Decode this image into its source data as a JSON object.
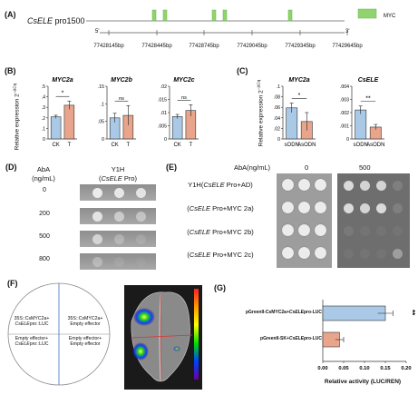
{
  "panels": {
    "A": {
      "label": "(A)",
      "gene": "CsELE",
      "promoter": "pro1500",
      "five_prime": "5'",
      "three_prime": "3'",
      "legend": "MYC",
      "positions": [
        "77428145bp",
        "77428445bp",
        "77428745bp",
        "77429045bp",
        "77429345bp",
        "77429645bp"
      ]
    },
    "B": {
      "label": "(B)",
      "ylabel_main": "Relative expression 2",
      "ylabel_sup": "−ΔCq",
      "charts": [
        {
          "title": "MYC2a",
          "sig": "*"
        },
        {
          "title": "MYC2b",
          "sig": "ns"
        },
        {
          "title": "MYC2c",
          "sig": "ns"
        }
      ]
    },
    "C": {
      "label": "(C)",
      "ylabel_main": "Relative expression 2",
      "ylabel_sup": "−ΔCq",
      "charts": [
        {
          "title": "MYC2a",
          "sig": "*"
        },
        {
          "title": "CsELE",
          "sig": "**"
        }
      ]
    },
    "D": {
      "label": "(D)",
      "col1": "AbA",
      "col1b": "(ng/mL)",
      "col2": "Y1H",
      "col2b_gene": "CsELE",
      "col2b_rest": " Pro)",
      "col2b_open": "(",
      "rows": [
        "0",
        "200",
        "500",
        "800"
      ]
    },
    "E": {
      "label": "(E)",
      "header": "AbA(ng/mL)",
      "cols": [
        "0",
        "500"
      ],
      "rows": [
        {
          "gene": "CsELE",
          "pre": "Y1H(",
          "post": " Pro+AD)"
        },
        {
          "gene": "CsELE",
          "pre": "(",
          "post": " Pro+MYC 2a)"
        },
        {
          "gene": "CsELE",
          "pre": "(",
          "post": " Pro+MYC 2b)"
        },
        {
          "gene": "CsELE",
          "pre": "(",
          "post": " Pro+MYC 2c)"
        }
      ]
    },
    "F": {
      "label": "(F)",
      "q_tl_1": "35S::CsMYC2a+",
      "q_tl_2": "CsELE",
      "q_tl_3": "pro::LUC",
      "q_tr_1": "35S::CsMYC2a+",
      "q_tr_2": "Empty effector",
      "q_bl_1": "Empty effector+",
      "q_bl_2": "CsELE",
      "q_bl_3": "pro::LUC",
      "q_br_1": "Empty effector+",
      "q_br_2": "Empty effector"
    },
    "G": {
      "label": "(G)",
      "xlabel": "Relative activity (LUC/REN)",
      "sig": "**",
      "bars": [
        {
          "pre": "pGreenII-CsMYC2a+",
          "gene": "CsELE",
          "post": "pro-LUC"
        },
        {
          "pre": "pGreenII-SK+",
          "gene": "CsELE",
          "post": "pro-LUC"
        }
      ]
    }
  },
  "colors": {
    "blue": "#a9c9e6",
    "salmon": "#e8a58c",
    "green": "#8fd46e",
    "plate_gray": "#9a9a9a"
  },
  "chart_data": [
    {
      "type": "bar",
      "title": "MYC2a",
      "categories": [
        "CK",
        "T"
      ],
      "values": [
        0.21,
        0.32
      ],
      "errors": [
        0.015,
        0.04
      ],
      "ylim": [
        0,
        0.5
      ],
      "yticks": [
        0,
        0.1,
        0.2,
        0.3,
        0.4,
        0.5
      ],
      "significance": "*"
    },
    {
      "type": "bar",
      "title": "MYC2b",
      "categories": [
        "CK",
        "T"
      ],
      "values": [
        0.06,
        0.067
      ],
      "errors": [
        0.013,
        0.028
      ],
      "ylim": [
        0,
        0.15
      ],
      "yticks": [
        0,
        0.05,
        0.1,
        0.15
      ],
      "significance": "ns"
    },
    {
      "type": "bar",
      "title": "MYC2c",
      "categories": [
        "CK",
        "T"
      ],
      "values": [
        0.0085,
        0.0108
      ],
      "errors": [
        0.0008,
        0.0022
      ],
      "ylim": [
        0,
        0.02
      ],
      "yticks": [
        0,
        0.005,
        0.01,
        0.015,
        0.02
      ],
      "significance": "ns"
    },
    {
      "type": "bar",
      "title": "MYC2a",
      "categories": [
        "sODN",
        "AsODN"
      ],
      "values": [
        0.059,
        0.033
      ],
      "errors": [
        0.009,
        0.017
      ],
      "ylim": [
        0,
        0.1
      ],
      "yticks": [
        0,
        0.02,
        0.04,
        0.06,
        0.08,
        0.1
      ],
      "significance": "*"
    },
    {
      "type": "bar",
      "title": "CsELE",
      "categories": [
        "sODN",
        "AsODN"
      ],
      "values": [
        0.0022,
        0.0009
      ],
      "errors": [
        0.0003,
        0.0002
      ],
      "ylim": [
        0,
        0.004
      ],
      "yticks": [
        0,
        0.001,
        0.002,
        0.003,
        0.004
      ],
      "significance": "**"
    },
    {
      "type": "bar",
      "orientation": "horizontal",
      "categories": [
        "pGreenII-CsMYC2a+CsELEpro-LUC",
        "pGreenII-SK+CsELEpro-LUC"
      ],
      "values": [
        0.15,
        0.04
      ],
      "errors": [
        0.018,
        0.01
      ],
      "xlim": [
        0,
        0.2
      ],
      "xticks": [
        0,
        0.05,
        0.1,
        0.15,
        0.2
      ],
      "xlabel": "Relative activity (LUC/REN)",
      "significance": "**"
    }
  ]
}
